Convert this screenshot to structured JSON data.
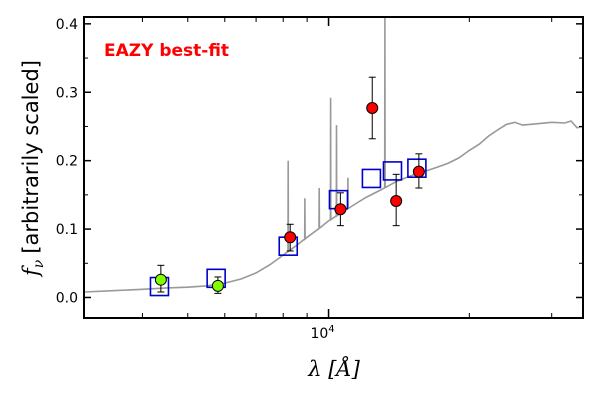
{
  "chart_data": {
    "type": "scatter",
    "title": "",
    "annotation": "EAZY best-fit",
    "annotation_color": "#ff0000",
    "xlabel": "λ [Å]",
    "ylabel": "f_ν [arbitrarily scaled]",
    "ylabel_symbol": "f",
    "ylabel_subscript": "ν",
    "ylabel_text": "[arbitrarily scaled]",
    "xlabel_symbol": "λ",
    "xlabel_unit": "[Å]",
    "x_scale": "log",
    "xlim": [
      3000,
      35000
    ],
    "ylim": [
      -0.03,
      0.41
    ],
    "grid": false,
    "x_ticks": [
      {
        "value": 10000,
        "base": "10",
        "exponent": "4"
      }
    ],
    "y_ticks": [
      {
        "value": 0.0,
        "label": "0.0"
      },
      {
        "value": 0.1,
        "label": "0.1"
      },
      {
        "value": 0.2,
        "label": "0.2"
      },
      {
        "value": 0.3,
        "label": "0.3"
      },
      {
        "value": 0.4,
        "label": "0.4"
      }
    ],
    "series": [
      {
        "kind": "model_spectrum",
        "color": "#999999",
        "continuum": [
          [
            3000,
            0.008
          ],
          [
            3500,
            0.01
          ],
          [
            4000,
            0.012
          ],
          [
            4500,
            0.014
          ],
          [
            5000,
            0.015
          ],
          [
            5500,
            0.017
          ],
          [
            6000,
            0.021
          ],
          [
            6500,
            0.027
          ],
          [
            7000,
            0.036
          ],
          [
            7500,
            0.048
          ],
          [
            8000,
            0.062
          ],
          [
            8500,
            0.075
          ],
          [
            9000,
            0.088
          ],
          [
            9500,
            0.1
          ],
          [
            10000,
            0.112
          ],
          [
            11000,
            0.13
          ],
          [
            12000,
            0.146
          ],
          [
            13000,
            0.158
          ],
          [
            14000,
            0.17
          ],
          [
            15000,
            0.178
          ],
          [
            16000,
            0.184
          ],
          [
            17000,
            0.19
          ],
          [
            18000,
            0.196
          ],
          [
            19000,
            0.204
          ],
          [
            20000,
            0.215
          ],
          [
            21000,
            0.224
          ],
          [
            22000,
            0.236
          ],
          [
            23000,
            0.245
          ],
          [
            24000,
            0.253
          ],
          [
            25000,
            0.256
          ],
          [
            26000,
            0.252
          ],
          [
            28000,
            0.254
          ],
          [
            30000,
            0.256
          ],
          [
            32000,
            0.255
          ],
          [
            33000,
            0.258
          ],
          [
            34000,
            0.248
          ],
          [
            35000,
            0.25
          ]
        ],
        "emission_lines": [
          {
            "wavelength": 8200,
            "peak": 0.2
          },
          {
            "wavelength": 8900,
            "peak": 0.145
          },
          {
            "wavelength": 9550,
            "peak": 0.16
          },
          {
            "wavelength": 10100,
            "peak": 0.292
          },
          {
            "wavelength": 10400,
            "peak": 0.252
          },
          {
            "wavelength": 11000,
            "peak": 0.175
          },
          {
            "wavelength": 13200,
            "peak": 0.41
          }
        ]
      },
      {
        "kind": "model_photometry",
        "marker": "open-square",
        "color": "#0000cc",
        "points": [
          {
            "x": 4350,
            "y": 0.016
          },
          {
            "x": 5750,
            "y": 0.028
          },
          {
            "x": 8200,
            "y": 0.075
          },
          {
            "x": 10500,
            "y": 0.143
          },
          {
            "x": 12350,
            "y": 0.174
          },
          {
            "x": 13700,
            "y": 0.185
          },
          {
            "x": 15450,
            "y": 0.189
          }
        ]
      },
      {
        "kind": "observed_photometry",
        "marker": "filled-circle",
        "color": "#7fff00",
        "points": [
          {
            "x": 4380,
            "y": 0.026,
            "err_low": 0.008,
            "err_high": 0.047
          },
          {
            "x": 5800,
            "y": 0.017,
            "err_low": 0.006,
            "err_high": 0.03
          }
        ]
      },
      {
        "kind": "observed_photometry",
        "marker": "filled-circle",
        "color": "#ff0000",
        "points": [
          {
            "x": 8280,
            "y": 0.088,
            "err_low": 0.068,
            "err_high": 0.107
          },
          {
            "x": 10600,
            "y": 0.129,
            "err_low": 0.105,
            "err_high": 0.153
          },
          {
            "x": 12400,
            "y": 0.277,
            "err_low": 0.232,
            "err_high": 0.322
          },
          {
            "x": 13950,
            "y": 0.141,
            "err_low": 0.105,
            "err_high": 0.18
          },
          {
            "x": 15600,
            "y": 0.184,
            "err_low": 0.16,
            "err_high": 0.21
          }
        ]
      }
    ]
  }
}
